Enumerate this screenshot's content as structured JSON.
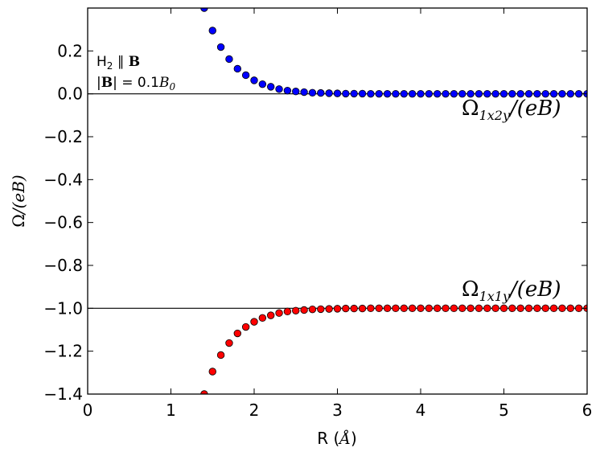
{
  "chart_data": {
    "type": "scatter",
    "xlabel": "R (Å)",
    "ylabel": "Ω/(eB)",
    "xlim": [
      0,
      6
    ],
    "ylim": [
      -1.4,
      0.4
    ],
    "x_ticks": [
      "0",
      "1",
      "2",
      "3",
      "4",
      "5",
      "6"
    ],
    "y_ticks": [
      "−1.4",
      "−1.2",
      "−1.0",
      "−0.8",
      "−0.6",
      "−0.4",
      "−0.2",
      "0.0",
      "0.2"
    ],
    "y_tick_values": [
      -1.4,
      -1.2,
      -1.0,
      -0.8,
      -0.6,
      -0.4,
      -0.2,
      0.0,
      0.2
    ],
    "reference_lines": [
      0.0,
      -1.0
    ],
    "annotation": {
      "line1": "H₂ ∥ B",
      "line2": "|B| = 0.1B₀"
    },
    "series": [
      {
        "name": "Ω1x2y/(eB)",
        "color": "#0000ff",
        "x": [
          1.4,
          1.5,
          1.6,
          1.7,
          1.8,
          1.9,
          2.0,
          2.1,
          2.2,
          2.3,
          2.4,
          2.5,
          2.6,
          2.7,
          2.8,
          2.9,
          3.0,
          3.1,
          3.2,
          3.3,
          3.4,
          3.5,
          3.6,
          3.7,
          3.8,
          3.9,
          4.0,
          4.1,
          4.2,
          4.3,
          4.4,
          4.5,
          4.6,
          4.7,
          4.8,
          4.9,
          5.0,
          5.1,
          5.2,
          5.3,
          5.4,
          5.5,
          5.6,
          5.7,
          5.8,
          5.9,
          6.0
        ],
        "y": [
          0.4,
          0.295,
          0.218,
          0.162,
          0.117,
          0.087,
          0.063,
          0.045,
          0.033,
          0.022,
          0.015,
          0.011,
          0.008,
          0.005,
          0.004,
          0.003,
          0.002,
          0.001,
          0.001,
          0.001,
          0.0,
          0.0,
          0.0,
          0.0,
          0.0,
          0.0,
          0.0,
          0.0,
          0.0,
          0.0,
          0.0,
          0.0,
          0.0,
          0.0,
          0.0,
          0.0,
          0.0,
          0.0,
          0.0,
          0.0,
          0.0,
          0.0,
          0.0,
          0.0,
          0.0,
          0.0,
          0.0
        ]
      },
      {
        "name": "Ω1x1y/(eB)",
        "color": "#ff0000",
        "x": [
          1.4,
          1.5,
          1.6,
          1.7,
          1.8,
          1.9,
          2.0,
          2.1,
          2.2,
          2.3,
          2.4,
          2.5,
          2.6,
          2.7,
          2.8,
          2.9,
          3.0,
          3.1,
          3.2,
          3.3,
          3.4,
          3.5,
          3.6,
          3.7,
          3.8,
          3.9,
          4.0,
          4.1,
          4.2,
          4.3,
          4.4,
          4.5,
          4.6,
          4.7,
          4.8,
          4.9,
          5.0,
          5.1,
          5.2,
          5.3,
          5.4,
          5.5,
          5.6,
          5.7,
          5.8,
          5.9,
          6.0
        ],
        "y": [
          -1.4,
          -1.295,
          -1.218,
          -1.162,
          -1.117,
          -1.087,
          -1.063,
          -1.045,
          -1.033,
          -1.022,
          -1.015,
          -1.011,
          -1.008,
          -1.005,
          -1.004,
          -1.003,
          -1.002,
          -1.001,
          -1.001,
          -1.001,
          -1.0,
          -1.0,
          -1.0,
          -1.0,
          -1.0,
          -1.0,
          -1.0,
          -1.0,
          -1.0,
          -1.0,
          -1.0,
          -1.0,
          -1.0,
          -1.0,
          -1.0,
          -1.0,
          -1.0,
          -1.0,
          -1.0,
          -1.0,
          -1.0,
          -1.0,
          -1.0,
          -1.0,
          -1.0,
          -1.0,
          -1.0
        ]
      }
    ]
  }
}
